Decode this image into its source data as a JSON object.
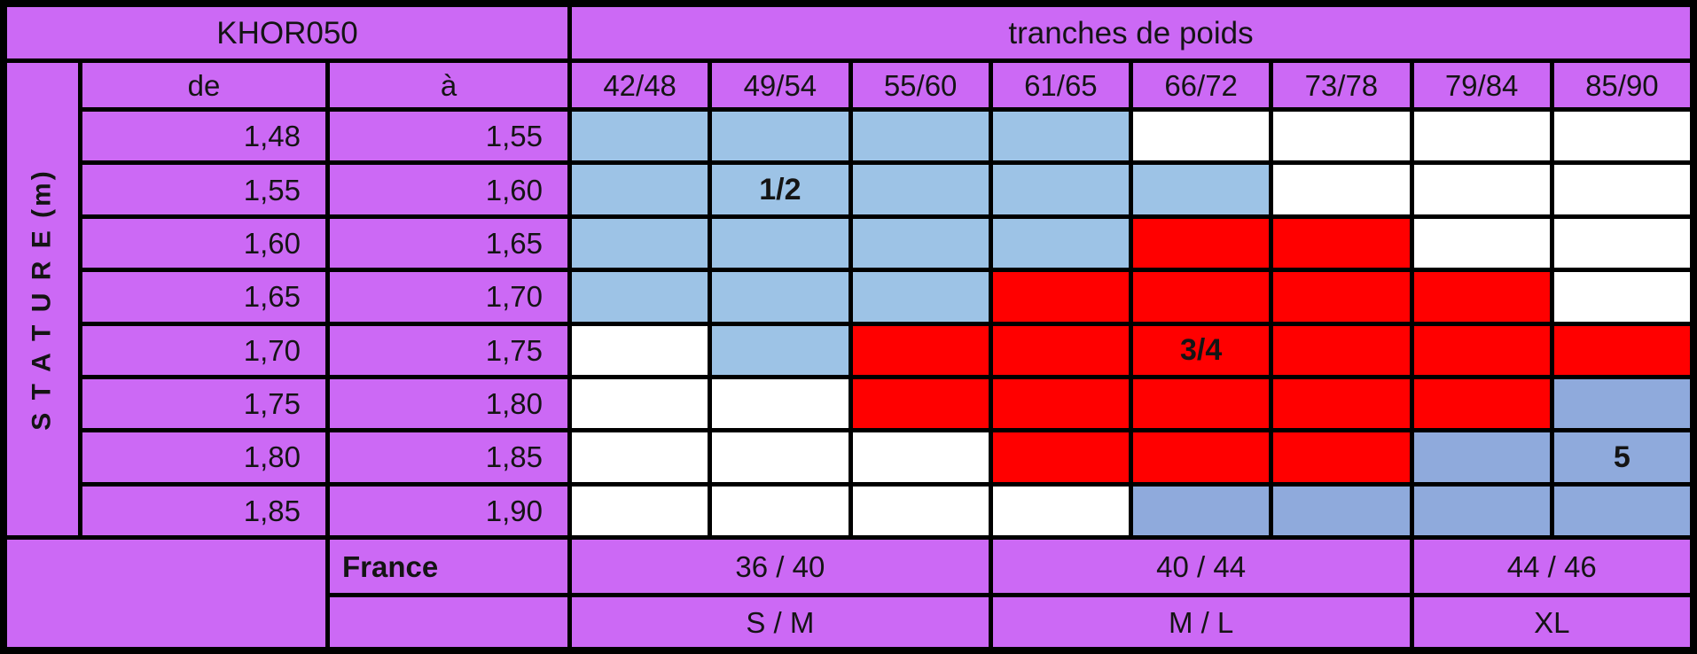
{
  "header": {
    "product_code": "KHOR050",
    "weights_title": "tranches de poids",
    "stature_label": "S T A T U R E  (m)",
    "from_label": "de",
    "to_label": "à"
  },
  "weight_columns": [
    "42/48",
    "49/54",
    "55/60",
    "61/65",
    "66/72",
    "73/78",
    "79/84",
    "85/90"
  ],
  "stature_rows": [
    {
      "de": "1,48",
      "a": "1,55"
    },
    {
      "de": "1,55",
      "a": "1,60"
    },
    {
      "de": "1,60",
      "a": "1,65"
    },
    {
      "de": "1,65",
      "a": "1,70"
    },
    {
      "de": "1,70",
      "a": "1,75"
    },
    {
      "de": "1,75",
      "a": "1,80"
    },
    {
      "de": "1,80",
      "a": "1,85"
    },
    {
      "de": "1,85",
      "a": "1,90"
    }
  ],
  "zone_colors": {
    "1/2": "#9DC3E6",
    "3/4": "#FF0000",
    "5": "#8FAADC",
    "": "#FFFFFF"
  },
  "zone_labels_shown": [
    {
      "row": 1,
      "col": 1,
      "text": "1/2"
    },
    {
      "row": 4,
      "col": 4,
      "text": "3/4"
    },
    {
      "row": 6,
      "col": 7,
      "text": "5"
    }
  ],
  "footer": {
    "france_label": "France",
    "fr_sizes": [
      "36 / 40",
      "40 / 44",
      "44 / 46"
    ],
    "intl_sizes": [
      "S / M",
      "M / L",
      "XL"
    ]
  },
  "theme": {
    "purple": "#CC69F5",
    "grid_lines": "#000000",
    "text": "#141414",
    "white": "#FFFFFF"
  },
  "chart_data": {
    "type": "heatmap",
    "title": "KHOR050",
    "x_title": "tranches de poids",
    "x_labels": [
      "42/48",
      "49/54",
      "55/60",
      "61/65",
      "66/72",
      "73/78",
      "79/84",
      "85/90"
    ],
    "y_title": "STATURE (m)",
    "y_labels": [
      "1,48–1,55",
      "1,55–1,60",
      "1,60–1,65",
      "1,65–1,70",
      "1,70–1,75",
      "1,75–1,80",
      "1,80–1,85",
      "1,85–1,90"
    ],
    "cell_meaning": "size zone per stature/weight combination; empty string = no recommended size",
    "matrix": [
      [
        "1/2",
        "1/2",
        "1/2",
        "1/2",
        "",
        "",
        "",
        ""
      ],
      [
        "1/2",
        "1/2",
        "1/2",
        "1/2",
        "1/2",
        "",
        "",
        ""
      ],
      [
        "1/2",
        "1/2",
        "1/2",
        "1/2",
        "3/4",
        "3/4",
        "",
        ""
      ],
      [
        "1/2",
        "1/2",
        "1/2",
        "3/4",
        "3/4",
        "3/4",
        "3/4",
        ""
      ],
      [
        "",
        "1/2",
        "3/4",
        "3/4",
        "3/4",
        "3/4",
        "3/4",
        "3/4"
      ],
      [
        "",
        "",
        "3/4",
        "3/4",
        "3/4",
        "3/4",
        "3/4",
        "5"
      ],
      [
        "",
        "",
        "",
        "3/4",
        "3/4",
        "3/4",
        "5",
        "5"
      ],
      [
        "",
        "",
        "",
        "",
        "5",
        "5",
        "5",
        "5"
      ]
    ],
    "legend": [
      {
        "zone": "1/2",
        "color": "#9DC3E6"
      },
      {
        "zone": "3/4",
        "color": "#FF0000"
      },
      {
        "zone": "5",
        "color": "#8FAADC"
      }
    ],
    "footer_table": {
      "France": {
        "36 / 40": [
          "42/48",
          "49/54",
          "55/60"
        ],
        "40 / 44": [
          "61/65",
          "66/72",
          "73/78"
        ],
        "44 / 46": [
          "79/84",
          "85/90"
        ]
      },
      "international": {
        "S / M": [
          "42/48",
          "49/54",
          "55/60"
        ],
        "M / L": [
          "61/65",
          "66/72",
          "73/78"
        ],
        "XL": [
          "79/84",
          "85/90"
        ]
      }
    },
    "grid": true,
    "legend_position": "none"
  }
}
